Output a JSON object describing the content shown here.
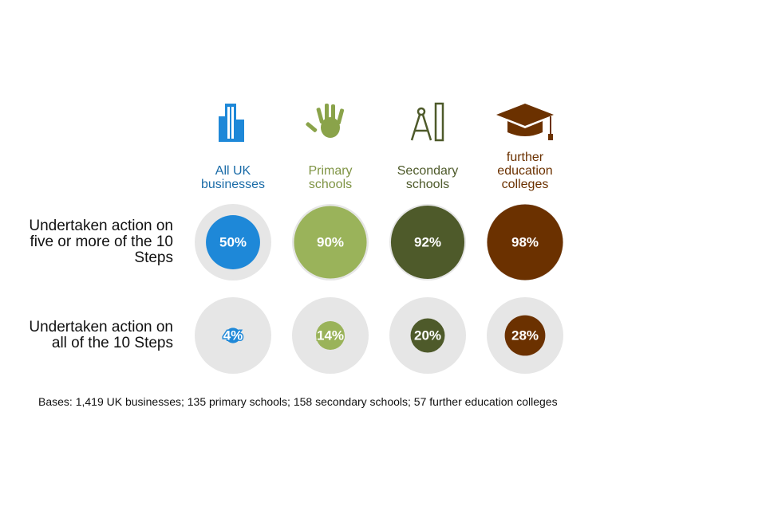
{
  "chart_data": {
    "type": "bubble-grid",
    "categories": [
      "All UK businesses",
      "Primary schools",
      "Secondary schools",
      "further education colleges"
    ],
    "colors": [
      "#1e88d8",
      "#9ab35a",
      "#4e5a2a",
      "#6b3100"
    ],
    "label_colors": [
      "#1b6ca8",
      "#7f9444",
      "#4e5a2a",
      "#6b3100"
    ],
    "series": [
      {
        "name": "Undertaken action on five or more of the 10 Steps",
        "values": [
          50,
          90,
          92,
          98
        ],
        "value_labels": [
          "50%",
          "90%",
          "92%",
          "98%"
        ]
      },
      {
        "name": "Undertaken action on all of the 10 Steps",
        "values": [
          4,
          14,
          20,
          28
        ],
        "value_labels": [
          "4%",
          "14%",
          "20%",
          "28%"
        ]
      }
    ],
    "footnote": "Bases: 1,419 UK businesses; 135 primary schools; 158 secondary schools; 57 further education colleges"
  }
}
